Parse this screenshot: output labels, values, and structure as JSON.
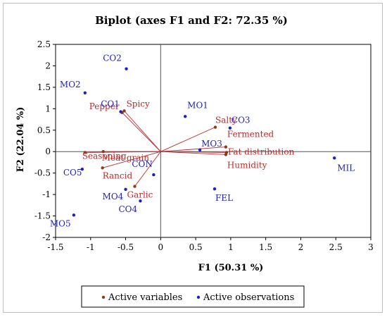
{
  "chart_data": {
    "type": "scatter",
    "title": "Biplot (axes F1 and F2: 72.35 %)",
    "xlabel": "F1 (50.31 %)",
    "ylabel": "F2 (22.04 %)",
    "xlim": [
      -1.5,
      3
    ],
    "ylim": [
      -2,
      2.5
    ],
    "xticks": [
      "-1.5",
      "-1",
      "-0.5",
      "0",
      "0.5",
      "1",
      "1.5",
      "2",
      "2.5",
      "3"
    ],
    "yticks": [
      "-2",
      "-1.5",
      "-1",
      "-0.5",
      "0",
      "0.5",
      "1",
      "1.5",
      "2",
      "2.5"
    ],
    "grid": false,
    "legend_position": "bottom",
    "series": [
      {
        "name": "Active variables",
        "color": "#8b3a1a",
        "kind": "vectors",
        "points": [
          {
            "label": "Spicy",
            "x": -0.52,
            "y": 0.95
          },
          {
            "label": "Pepper",
            "x": -0.55,
            "y": 0.91
          },
          {
            "label": "Salty",
            "x": 0.78,
            "y": 0.57
          },
          {
            "label": "Fermented",
            "x": 0.93,
            "y": 0.11
          },
          {
            "label": "Fat distribution",
            "x": 0.94,
            "y": -0.02
          },
          {
            "label": "Humidity",
            "x": 0.93,
            "y": -0.07
          },
          {
            "label": "Seasoning",
            "x": -1.08,
            "y": -0.02
          },
          {
            "label": "Meat grain",
            "x": -0.82,
            "y": 0.0
          },
          {
            "label": "Rancid",
            "x": -0.83,
            "y": -0.38
          },
          {
            "label": "Garlic",
            "x": -0.37,
            "y": -0.81
          }
        ]
      },
      {
        "name": "Active observations",
        "color": "#1f1fbf",
        "kind": "points",
        "points": [
          {
            "label": "CO2",
            "x": -0.49,
            "y": 1.93
          },
          {
            "label": "MO2",
            "x": -1.08,
            "y": 1.37
          },
          {
            "label": "CO1",
            "x": -0.57,
            "y": 0.93
          },
          {
            "label": "MO1",
            "x": 0.35,
            "y": 0.82
          },
          {
            "label": "CO3",
            "x": 0.99,
            "y": 0.55
          },
          {
            "label": "MO3",
            "x": 0.56,
            "y": 0.04
          },
          {
            "label": "MIL",
            "x": 2.48,
            "y": -0.15
          },
          {
            "label": "CO5",
            "x": -1.12,
            "y": -0.41
          },
          {
            "label": "CON",
            "x": -0.1,
            "y": -0.54
          },
          {
            "label": "MO4",
            "x": -0.5,
            "y": -0.88
          },
          {
            "label": "FEL",
            "x": 0.77,
            "y": -0.87
          },
          {
            "label": "CO4",
            "x": -0.29,
            "y": -1.15
          },
          {
            "label": "MO5",
            "x": -1.24,
            "y": -1.48
          }
        ]
      }
    ]
  }
}
